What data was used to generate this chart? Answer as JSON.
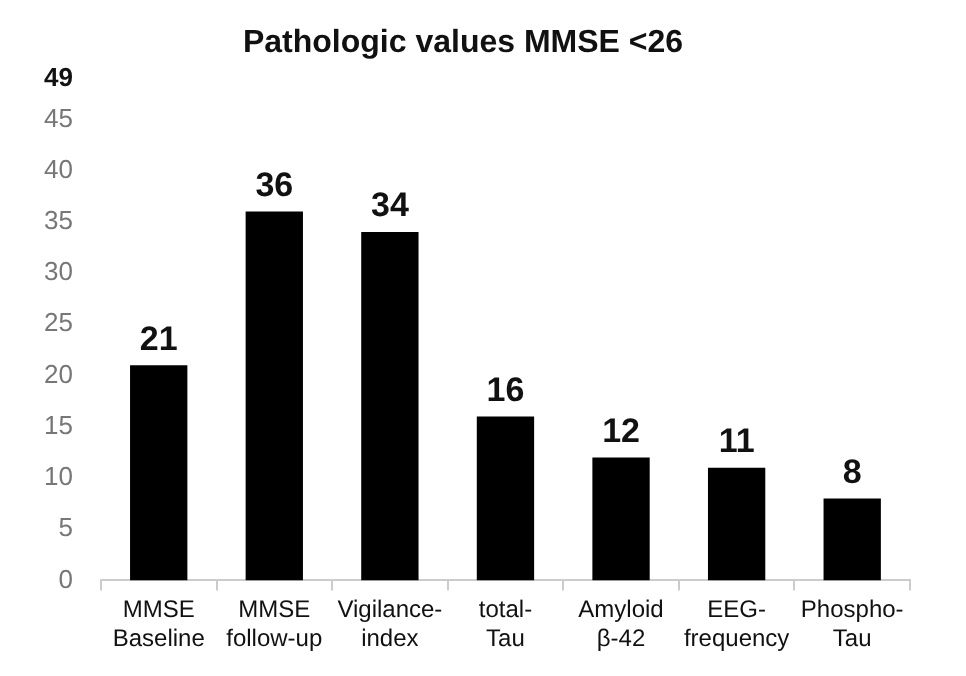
{
  "chart_data": {
    "type": "bar",
    "title": "Pathologic values MMSE <26",
    "categories": [
      "MMSE\nBaseline",
      "MMSE\nfollow-up",
      "Vigilance-\nindex",
      "total-\nTau",
      "Amyloid\nβ-42",
      "EEG-\nfrequency",
      "Phospho-\nTau"
    ],
    "values": [
      21,
      36,
      34,
      16,
      12,
      11,
      8
    ],
    "color": "#000000",
    "ylim": [
      0,
      49
    ],
    "yticks": [
      0,
      5,
      10,
      15,
      20,
      25,
      30,
      35,
      40,
      45,
      49
    ],
    "grid": false,
    "data_labels": true,
    "legend": false
  }
}
